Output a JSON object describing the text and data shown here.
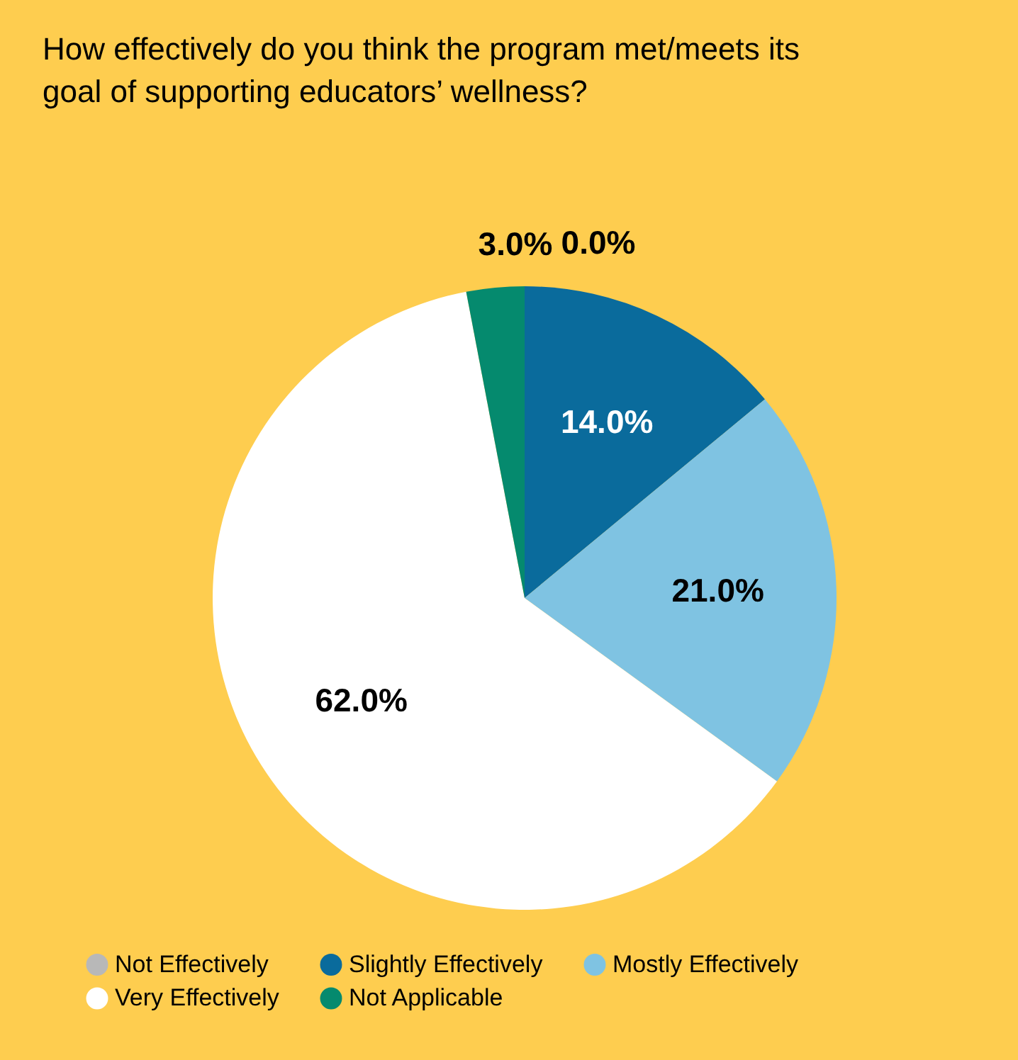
{
  "chart_data": {
    "type": "pie",
    "title": "How effectively do you think the program met/meets its goal of supporting educators’ wellness?",
    "categories": [
      "Not Effectively",
      "Slightly Effectively",
      "Mostly Effectively",
      "Very Effectively",
      "Not Applicable"
    ],
    "values": [
      0.0,
      14.0,
      21.0,
      62.0,
      3.0
    ],
    "colors": [
      "#b8b8b8",
      "#0a6b9c",
      "#7fc3e2",
      "#ffffff",
      "#058a6e"
    ],
    "value_labels": [
      "0.0%",
      "14.0%",
      "21.0%",
      "62.0%",
      "3.0%"
    ],
    "legend": "bottom"
  }
}
